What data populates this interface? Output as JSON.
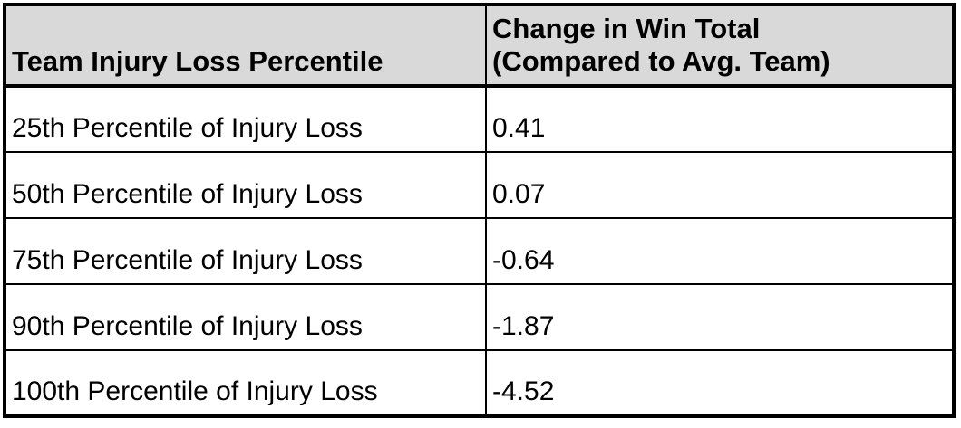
{
  "table": {
    "headers": {
      "percentile": "Team Injury Loss Percentile",
      "win_total": "Change in Win Total\n(Compared to Avg. Team)"
    },
    "rows": [
      {
        "label": "25th Percentile of Injury Loss",
        "value": "0.41"
      },
      {
        "label": "50th Percentile of Injury Loss",
        "value": "0.07"
      },
      {
        "label": "75th Percentile of Injury Loss",
        "value": "-0.64"
      },
      {
        "label": "90th Percentile of Injury Loss",
        "value": "-1.87"
      },
      {
        "label": "100th Percentile of Injury Loss",
        "value": "-4.52"
      }
    ],
    "colors": {
      "header_bg": "#d9d9d9",
      "body_bg": "#ffffff",
      "border": "#000000",
      "text": "#000000"
    }
  },
  "chart_data": {
    "type": "table",
    "title": "",
    "columns": [
      "Team Injury Loss Percentile",
      "Change in Win Total (Compared to Avg. Team)"
    ],
    "categories": [
      "25th Percentile of Injury Loss",
      "50th Percentile of Injury Loss",
      "75th Percentile of Injury Loss",
      "90th Percentile of Injury Loss",
      "100th Percentile of Injury Loss"
    ],
    "values": [
      0.41,
      0.07,
      -0.64,
      -1.87,
      -4.52
    ]
  }
}
